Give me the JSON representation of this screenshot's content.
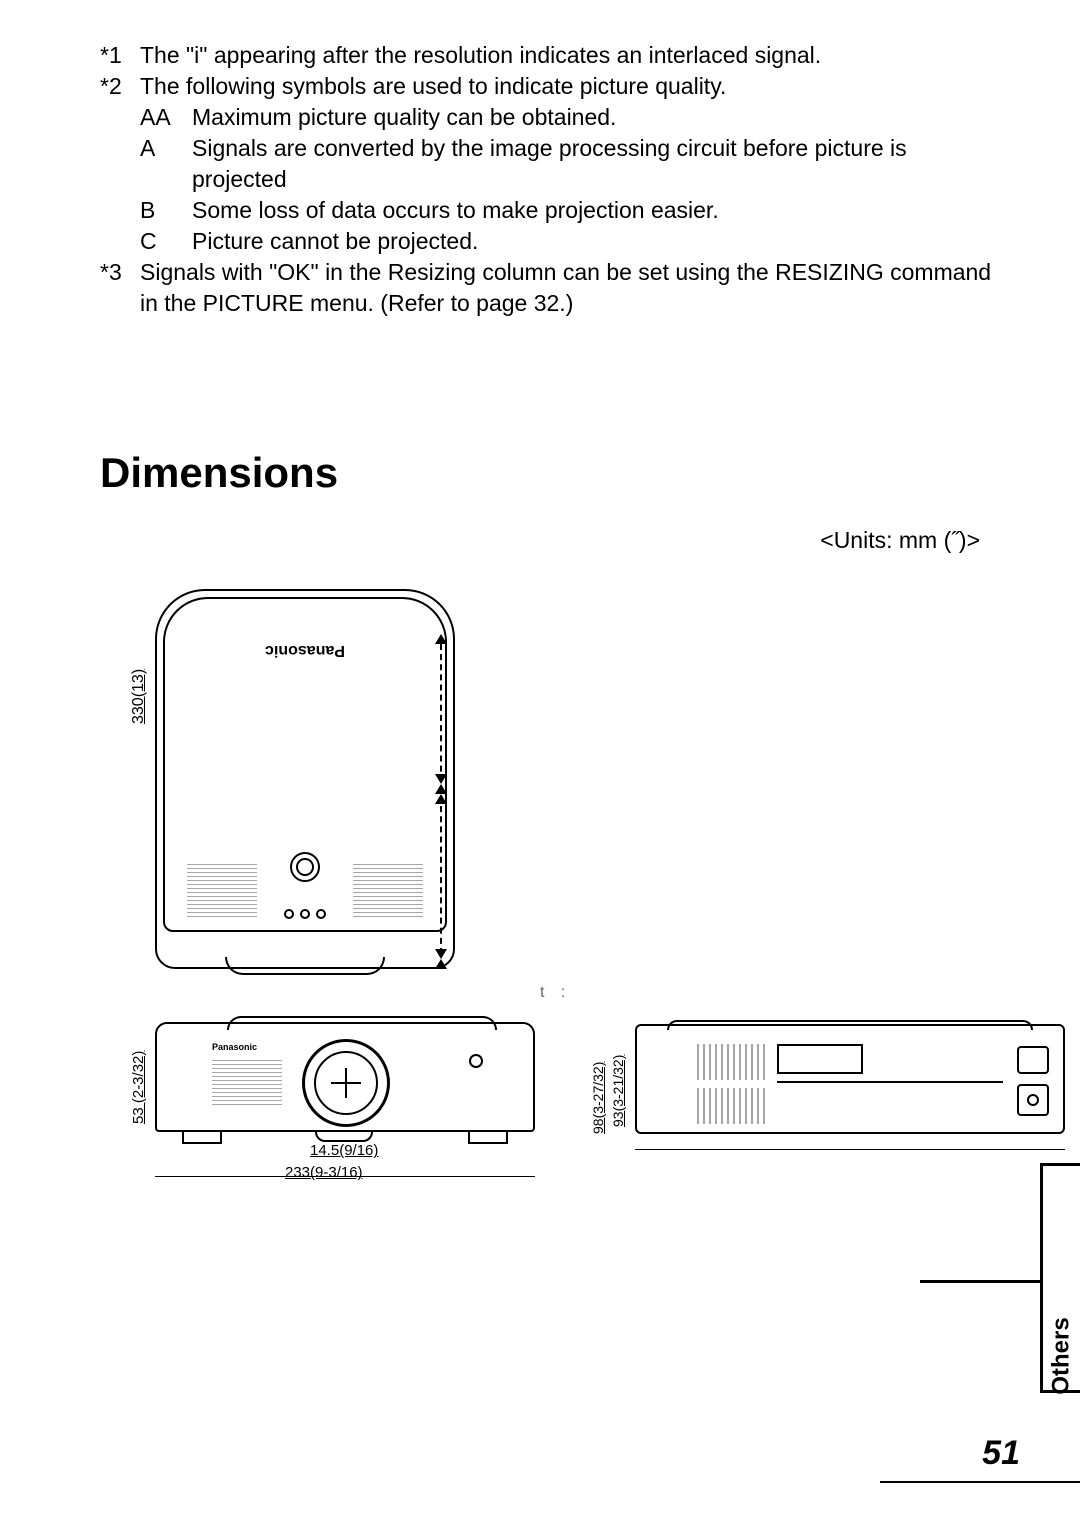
{
  "notes": {
    "n1": {
      "num": "*1",
      "text": "The \"i\" appearing after the resolution indicates an interlaced signal."
    },
    "n2": {
      "num": "*2",
      "text": "The following symbols are used to indicate picture quality."
    },
    "subs": {
      "aa": {
        "key": "AA",
        "text": "Maximum picture quality can be obtained."
      },
      "a": {
        "key": "A",
        "text": "Signals are converted by the image processing circuit before picture is projected"
      },
      "b": {
        "key": "B",
        "text": "Some loss of data occurs to make projection easier."
      },
      "c": {
        "key": "C",
        "text": "Picture cannot be projected."
      }
    },
    "n3": {
      "num": "*3",
      "text": "Signals with \"OK\" in the Resizing column can be set using the RESIZING command in the PICTURE menu. (Refer to page 32.)"
    }
  },
  "heading": "Dimensions",
  "units": "<Units: mm (˝)>",
  "brand": "Panasonic",
  "dims": {
    "height_top": "330(13)",
    "height_front": "53 (2-3/32)",
    "lens_offset": "14.5(9/16)",
    "width_front": "233(9-3/16)",
    "side_outer": "98(3-27/32)",
    "side_inner": "93(3-21/32)"
  },
  "tab_label": "Others",
  "page_number": "51",
  "colors": {
    "fg": "#000000",
    "bg": "#ffffff"
  }
}
